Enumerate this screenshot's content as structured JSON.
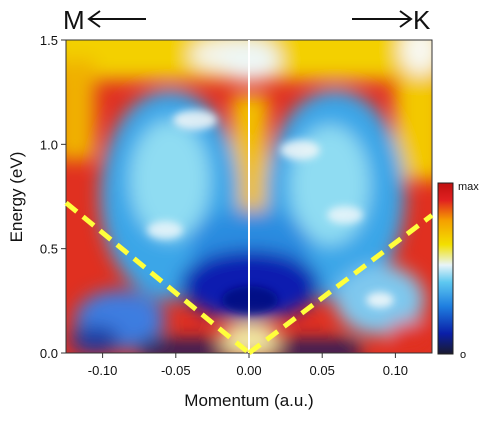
{
  "chart_data": {
    "type": "heatmap",
    "xlabel": "Momentum (a.u.)",
    "ylabel": "Energy (eV)",
    "xlim": [
      -0.125,
      0.125
    ],
    "ylim": [
      0.0,
      1.5
    ],
    "x_ticks": [
      -0.1,
      -0.05,
      0.0,
      0.05,
      0.1
    ],
    "x_tick_labels": [
      "-0.10",
      "-0.05",
      "0.00",
      "0.05",
      "0.10"
    ],
    "y_ticks": [
      0.0,
      0.5,
      1.0,
      1.5
    ],
    "y_tick_labels": [
      "0.0",
      "0.5",
      "1.0",
      "1.5"
    ],
    "direction_labels": {
      "left": "M",
      "right": "K"
    },
    "colorbar": {
      "min_label": "o",
      "max_label": "max",
      "colors": [
        "#1a1a2e",
        "#0a1fa8",
        "#1f7fe0",
        "#5ec8f0",
        "#e8f4f8",
        "#f3e000",
        "#f5a000",
        "#e02020",
        "#c01010"
      ]
    },
    "overlays": {
      "center_line": {
        "x": 0.0,
        "color": "#ffffff"
      },
      "dashed_lines": [
        {
          "color": "#ffff3c",
          "points": [
            [
              -0.125,
              0.72
            ],
            [
              0.0,
              0.0
            ]
          ]
        },
        {
          "color": "#ffff3c",
          "points": [
            [
              0.0,
              0.0
            ],
            [
              0.125,
              0.66
            ]
          ]
        }
      ]
    }
  }
}
